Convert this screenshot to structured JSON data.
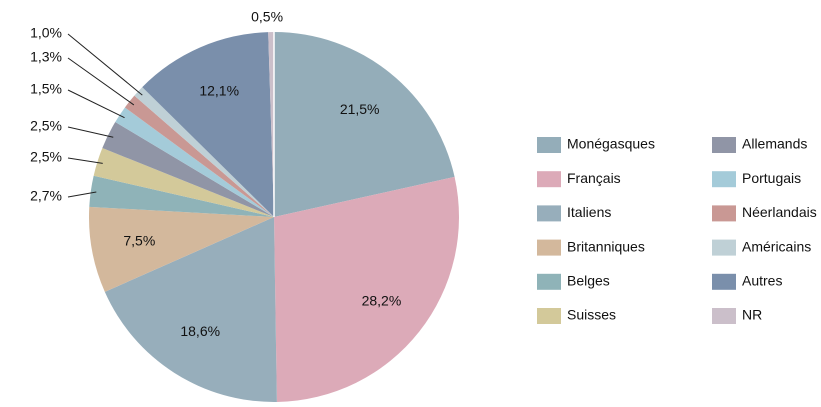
{
  "chart_data": {
    "type": "pie",
    "categories": [
      "Monégasques",
      "Français",
      "Italiens",
      "Britanniques",
      "Belges",
      "Suisses",
      "Allemands",
      "Portugais",
      "Néerlandais",
      "Américains",
      "Autres",
      "NR"
    ],
    "values": [
      21.5,
      28.2,
      18.6,
      7.5,
      2.7,
      2.5,
      2.5,
      1.5,
      1.3,
      1.0,
      12.1,
      0.5
    ],
    "value_labels": [
      "21,5%",
      "28,2%",
      "18,6%",
      "7,5%",
      "2,7%",
      "2,5%",
      "2,5%",
      "1,5%",
      "1,3%",
      "1,0%",
      "12,1%",
      "0,5%"
    ],
    "colors": [
      "#94adb9",
      "#dcaab8",
      "#97aebb",
      "#d3b89c",
      "#8fb3b8",
      "#d3c99a",
      "#9095a6",
      "#a4cbd9",
      "#c99894",
      "#bfd0d6",
      "#7a8fab",
      "#cbbfca"
    ],
    "legend": "right"
  }
}
